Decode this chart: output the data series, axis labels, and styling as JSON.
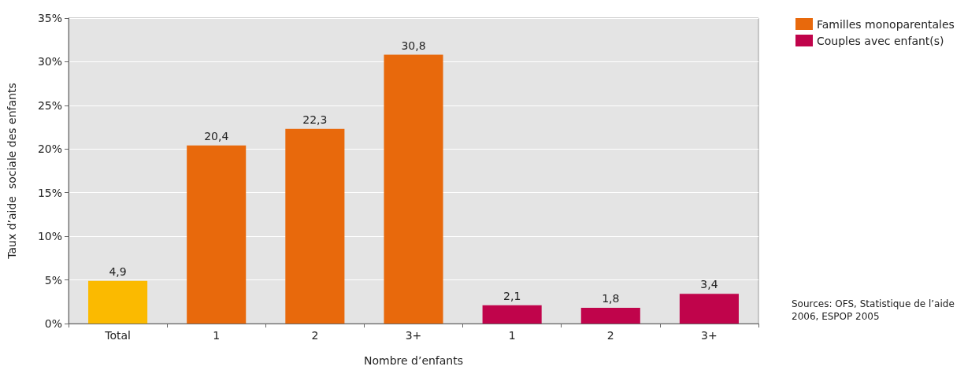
{
  "chart_data": {
    "type": "bar",
    "xlabel": "Nombre d’enfants",
    "ylabel": "Taux d’aide  sociale des enfants",
    "categories": [
      "Total",
      "1",
      "2",
      "3+",
      "1",
      "2",
      "3+"
    ],
    "series": [
      {
        "color": "#fbba00",
        "values": [
          4.9,
          null,
          null,
          null,
          null,
          null,
          null
        ],
        "value_labels": [
          "4,9",
          null,
          null,
          null,
          null,
          null,
          null
        ]
      },
      {
        "name": "Familles monoparentales",
        "color": "#e8690c",
        "values": [
          null,
          20.4,
          22.3,
          30.8,
          null,
          null,
          null
        ],
        "value_labels": [
          null,
          "20,4",
          "22,3",
          "30,8",
          null,
          null,
          null
        ]
      },
      {
        "name": "Couples avec enfant(s)",
        "color": "#c0044b",
        "values": [
          null,
          null,
          null,
          null,
          2.1,
          1.8,
          3.4
        ],
        "value_labels": [
          null,
          null,
          null,
          null,
          "2,1",
          "1,8",
          "3,4"
        ]
      }
    ],
    "ylim": [
      0,
      35
    ],
    "yticks": [
      {
        "value": 0,
        "label": "0%"
      },
      {
        "value": 5,
        "label": "5%"
      },
      {
        "value": 10,
        "label": "10%"
      },
      {
        "value": 15,
        "label": "15%"
      },
      {
        "value": 20,
        "label": "20%"
      },
      {
        "value": 25,
        "label": "25%"
      },
      {
        "value": 30,
        "label": "30%"
      },
      {
        "value": 35,
        "label": "35%"
      }
    ],
    "grid": "y",
    "legend": "top right",
    "annotations": [
      "Sources: OFS, Statistique de l’aide\n2006, ESPOP 2005"
    ]
  }
}
